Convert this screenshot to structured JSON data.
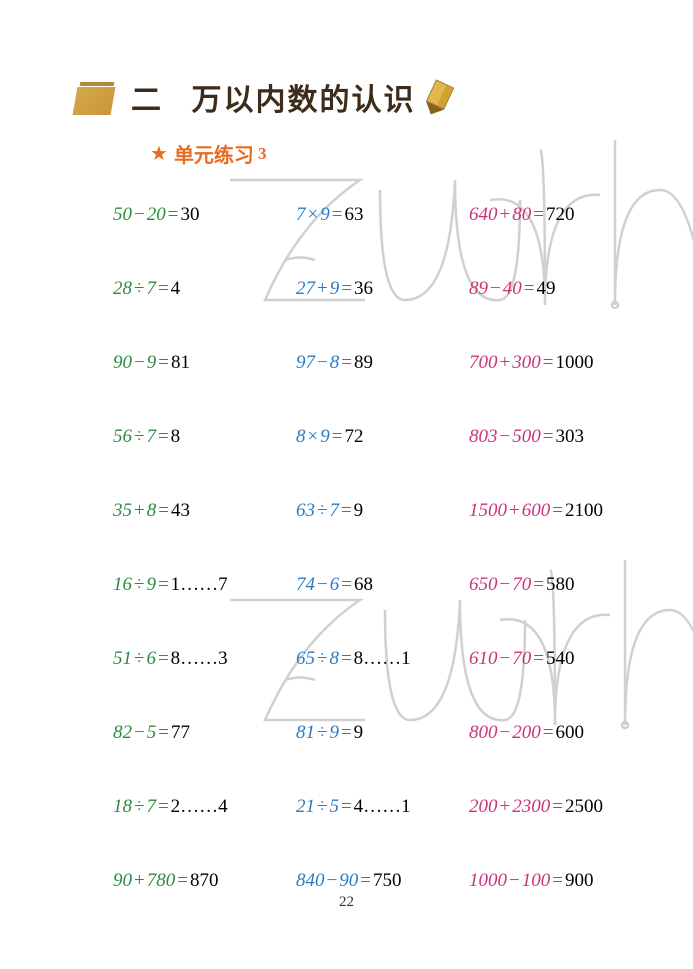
{
  "chapter": {
    "number": "二",
    "title": "万以内数的认识"
  },
  "section": {
    "label": "单元练习",
    "number": "3"
  },
  "colors": {
    "col1": "#2c8b3d",
    "col2": "#2a7bc4",
    "col3": "#c9337a",
    "answer": "#000000",
    "heading": "#e86c1f",
    "watermark_stroke": "#d0d0d0"
  },
  "problems": [
    [
      {
        "expr_parts": [
          "50",
          "−",
          "20",
          "="
        ],
        "answer": "30"
      },
      {
        "expr_parts": [
          "7",
          "×",
          "9",
          "="
        ],
        "answer": "63"
      },
      {
        "expr_parts": [
          "640",
          "+",
          "80",
          "="
        ],
        "answer": "720"
      }
    ],
    [
      {
        "expr_parts": [
          "28",
          "÷",
          "7",
          "="
        ],
        "answer": "4"
      },
      {
        "expr_parts": [
          "27",
          "+",
          "9",
          "="
        ],
        "answer": "36"
      },
      {
        "expr_parts": [
          "89",
          "−",
          "40",
          "="
        ],
        "answer": "49"
      }
    ],
    [
      {
        "expr_parts": [
          "90",
          "−",
          "9",
          "="
        ],
        "answer": "81"
      },
      {
        "expr_parts": [
          "97",
          "−",
          "8",
          "="
        ],
        "answer": "89"
      },
      {
        "expr_parts": [
          "700",
          "+",
          "300",
          "="
        ],
        "answer": "1000"
      }
    ],
    [
      {
        "expr_parts": [
          "56",
          "÷",
          "7",
          "="
        ],
        "answer": "8"
      },
      {
        "expr_parts": [
          "8",
          "×",
          "9",
          "="
        ],
        "answer": "72"
      },
      {
        "expr_parts": [
          "803",
          "−",
          "500",
          "="
        ],
        "answer": "303"
      }
    ],
    [
      {
        "expr_parts": [
          "35",
          "+",
          "8",
          "="
        ],
        "answer": "43"
      },
      {
        "expr_parts": [
          "63",
          "÷",
          "7",
          "="
        ],
        "answer": "9"
      },
      {
        "expr_parts": [
          "1500",
          "+",
          "600",
          "="
        ],
        "answer": "2100"
      }
    ],
    [
      {
        "expr_parts": [
          "16",
          "÷",
          "9",
          "="
        ],
        "answer": "1……7"
      },
      {
        "expr_parts": [
          "74",
          "−",
          "6",
          "="
        ],
        "answer": "68"
      },
      {
        "expr_parts": [
          "650",
          "−",
          "70",
          "="
        ],
        "answer": "580"
      }
    ],
    [
      {
        "expr_parts": [
          "51",
          "÷",
          "6",
          "="
        ],
        "answer": "8……3"
      },
      {
        "expr_parts": [
          "65",
          "÷",
          "8",
          "="
        ],
        "answer": "8……1"
      },
      {
        "expr_parts": [
          "610",
          "−",
          "70",
          "="
        ],
        "answer": "540"
      }
    ],
    [
      {
        "expr_parts": [
          "82",
          "−",
          "5",
          "="
        ],
        "answer": "77"
      },
      {
        "expr_parts": [
          "81",
          "÷",
          "9",
          "="
        ],
        "answer": "9"
      },
      {
        "expr_parts": [
          "800",
          "−",
          "200",
          "="
        ],
        "answer": "600"
      }
    ],
    [
      {
        "expr_parts": [
          "18",
          "÷",
          "7",
          "="
        ],
        "answer": "2……4"
      },
      {
        "expr_parts": [
          "21",
          "÷",
          "5",
          "="
        ],
        "answer": "4……1"
      },
      {
        "expr_parts": [
          "200",
          "+",
          "2300",
          "="
        ],
        "answer": "2500"
      }
    ],
    [
      {
        "expr_parts": [
          "90",
          "+",
          "780",
          "="
        ],
        "answer": "870"
      },
      {
        "expr_parts": [
          "840",
          "−",
          "90",
          "="
        ],
        "answer": "750"
      },
      {
        "expr_parts": [
          "1000",
          "−",
          "100",
          "="
        ],
        "answer": "900"
      }
    ]
  ],
  "page_number": "22",
  "font_sizes": {
    "chapter_title": 30,
    "section_title": 20,
    "problem": 19,
    "page_num": 15
  }
}
